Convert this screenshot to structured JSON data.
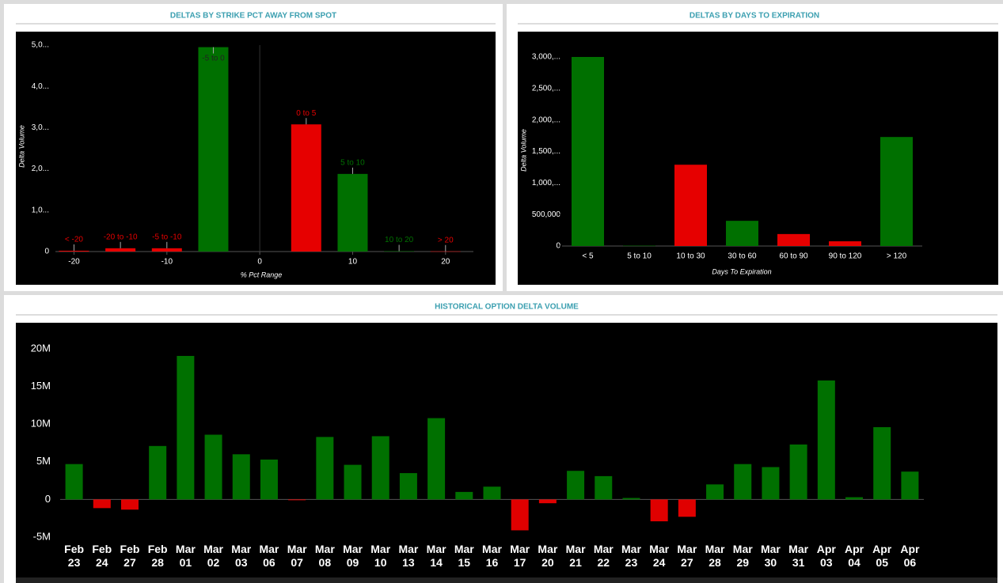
{
  "chart_data": [
    {
      "type": "bar",
      "title": "DELTAS BY STRIKE PCT AWAY FROM SPOT",
      "y_label": "Delta Volume",
      "x_label": "% Pct Range",
      "categories": [
        "< -20",
        "-20 to -10",
        "-5 to -10",
        "-5 to 0",
        "0 to 5",
        "5 to 10",
        "10 to 20",
        "> 20"
      ],
      "x": [
        -20,
        -15,
        -10,
        -5,
        5,
        10,
        15,
        20
      ],
      "values": [
        20000,
        80000,
        80000,
        4950000,
        3080000,
        1880000,
        10000,
        5000
      ],
      "colors": [
        "#e60000",
        "#e60000",
        "#e60000",
        "#007000",
        "#e60000",
        "#007000",
        "#007000",
        "#e60000"
      ],
      "xlim": [
        -22,
        23
      ],
      "xticks": [
        -20,
        -10,
        0,
        10,
        20
      ],
      "ylim": [
        0,
        5000000
      ],
      "yticks": [
        0,
        {
          "value": 1000000,
          "label": "1,0..."
        },
        {
          "value": 2000000,
          "label": "2,0..."
        },
        {
          "value": 3000000,
          "label": "3,0..."
        },
        {
          "value": 4000000,
          "label": "4,0..."
        },
        {
          "value": 5000000,
          "label": "5,0..."
        }
      ]
    },
    {
      "type": "bar",
      "title": "DELTAS BY DAYS TO EXPIRATION",
      "y_label": "Delta Volume",
      "x_label": "Days To Expiration",
      "categories": [
        "< 5",
        "5 to 10",
        "10 to 30",
        "30 to 60",
        "60 to 90",
        "90 to 120",
        "> 120"
      ],
      "values": [
        3000000,
        5000,
        1290000,
        400000,
        190000,
        75000,
        1730000
      ],
      "colors": [
        "#007000",
        "#007000",
        "#e60000",
        "#007000",
        "#e60000",
        "#e60000",
        "#007000"
      ],
      "ylim": [
        0,
        3000000
      ],
      "yticks": [
        0,
        {
          "value": 500000,
          "label": "500,000"
        },
        {
          "value": 1000000,
          "label": "1,000,..."
        },
        {
          "value": 1500000,
          "label": "1,500,..."
        },
        {
          "value": 2000000,
          "label": "2,000,..."
        },
        {
          "value": 2500000,
          "label": "2,500,..."
        },
        {
          "value": 3000000,
          "label": "3,000,..."
        }
      ]
    },
    {
      "type": "bar",
      "title": "HISTORICAL OPTION DELTA VOLUME",
      "categories": [
        "Feb 23",
        "Feb 24",
        "Feb 27",
        "Feb 28",
        "Mar 01",
        "Mar 02",
        "Mar 03",
        "Mar 06",
        "Mar 07",
        "Mar 08",
        "Mar 09",
        "Mar 10",
        "Mar 13",
        "Mar 14",
        "Mar 15",
        "Mar 16",
        "Mar 17",
        "Mar 20",
        "Mar 21",
        "Mar 22",
        "Mar 23",
        "Mar 24",
        "Mar 27",
        "Mar 28",
        "Mar 29",
        "Mar 30",
        "Mar 31",
        "Apr 03",
        "Apr 04",
        "Apr 05",
        "Apr 06"
      ],
      "values": [
        4700000,
        -1150000,
        -1350000,
        7100000,
        19060000,
        8600000,
        6000000,
        5300000,
        -100000,
        8300000,
        4600000,
        8400000,
        3500000,
        10800000,
        1000000,
        1700000,
        -4100000,
        -500000,
        3800000,
        3100000,
        200000,
        -2900000,
        -2300000,
        2000000,
        4700000,
        4300000,
        7300000,
        15800000,
        300000,
        9600000,
        3700000
      ],
      "color": "#007000",
      "negative_color": "#e00000",
      "ylim": [
        -5000000,
        20000000
      ],
      "yticks": [
        {
          "value": -5000000,
          "label": "-5M"
        },
        0,
        {
          "value": 5000000,
          "label": "5M"
        },
        {
          "value": 10000000,
          "label": "10M"
        },
        {
          "value": 15000000,
          "label": "15M"
        },
        {
          "value": 20000000,
          "label": "20M"
        }
      ]
    }
  ]
}
